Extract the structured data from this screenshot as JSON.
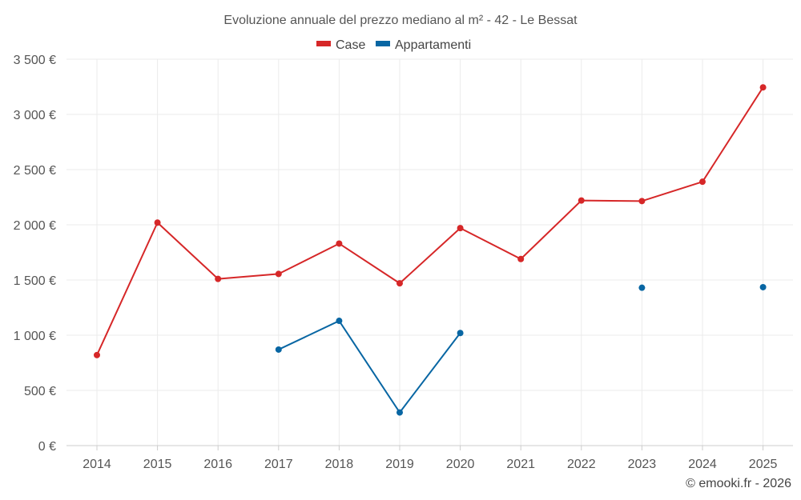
{
  "chart_data": {
    "type": "line",
    "title": "Evoluzione annuale del prezzo mediano al m² - 42 - Le Bessat",
    "xlabel": "",
    "ylabel": "",
    "categories": [
      "2014",
      "2015",
      "2016",
      "2017",
      "2018",
      "2019",
      "2020",
      "2021",
      "2022",
      "2023",
      "2024",
      "2025"
    ],
    "ylim": [
      0,
      3500
    ],
    "yticks": [
      {
        "value": 0,
        "label": "0 €"
      },
      {
        "value": 500,
        "label": "500 €"
      },
      {
        "value": 1000,
        "label": "1 000 €"
      },
      {
        "value": 1500,
        "label": "1 500 €"
      },
      {
        "value": 2000,
        "label": "2 000 €"
      },
      {
        "value": 2500,
        "label": "2 500 €"
      },
      {
        "value": 3000,
        "label": "3 000 €"
      },
      {
        "value": 3500,
        "label": "3 500 €"
      }
    ],
    "series": [
      {
        "name": "Case",
        "color": "#d62728",
        "values": [
          820,
          2020,
          1510,
          1555,
          1830,
          1470,
          1970,
          1690,
          2220,
          2215,
          2390,
          3245
        ]
      },
      {
        "name": "Appartamenti",
        "color": "#0866a3",
        "values": [
          null,
          null,
          null,
          870,
          1130,
          300,
          1020,
          null,
          null,
          1430,
          null,
          1435
        ]
      }
    ],
    "grid": true,
    "legend": "top-center"
  },
  "credit": "© emooki.fr - 2026"
}
